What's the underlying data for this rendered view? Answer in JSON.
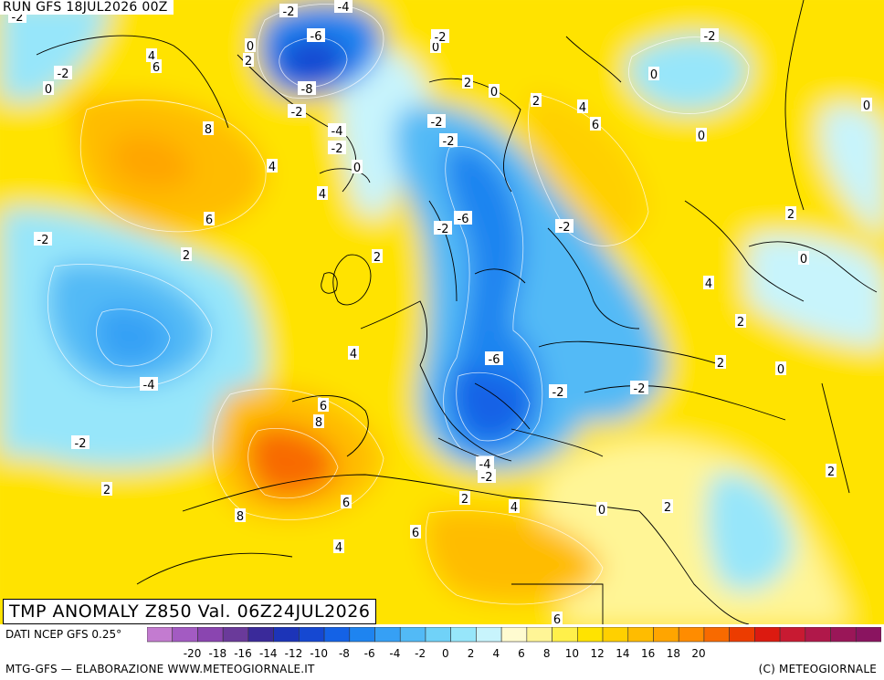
{
  "header": {
    "run_label": "RUN GFS 18JUL2026 00Z"
  },
  "title": {
    "text": "TMP ANOMALY Z850 Val. 06Z24JUL2026"
  },
  "footer": {
    "source": "DATI NCEP GFS 0.25°",
    "credit_left": "MTG-GFS — ELABORAZIONE WWW.METEOGIORNALE.IT",
    "credit_right": "(C) METEOGIORNALE"
  },
  "colorbar": {
    "colors": [
      "#c37bd0",
      "#a35bc2",
      "#8a45b0",
      "#6a3a9a",
      "#3a2a9a",
      "#1c34b8",
      "#1548d2",
      "#1462e6",
      "#1e84f0",
      "#36a0f5",
      "#52baf6",
      "#70d2f8",
      "#97e6fa",
      "#c8f4fc",
      "#fffbd0",
      "#fff596",
      "#fff04a",
      "#ffe300",
      "#ffd000",
      "#ffbc00",
      "#ffa500",
      "#ff8c00",
      "#f86a00",
      "#ec3c00",
      "#dc1a10",
      "#c81a32",
      "#b0184a",
      "#9a1658",
      "#8a1460"
    ],
    "tick_labels": [
      "-20",
      "-18",
      "-16",
      "-14",
      "-12",
      "-10",
      "-8",
      "-6",
      "-4",
      "-2",
      "0",
      "2",
      "4",
      "6",
      "8",
      "10",
      "12",
      "14",
      "16",
      "18",
      "20"
    ]
  },
  "map": {
    "contour_labels": [
      {
        "text": "-2"
      },
      {
        "text": "-4"
      },
      {
        "text": "-6"
      },
      {
        "text": "0"
      },
      {
        "text": "2"
      },
      {
        "text": "-8"
      },
      {
        "text": "-2"
      },
      {
        "text": "-4"
      },
      {
        "text": "-2"
      },
      {
        "text": "0"
      },
      {
        "text": "4"
      },
      {
        "text": "6"
      },
      {
        "text": "0"
      },
      {
        "text": "-2"
      },
      {
        "text": "8"
      },
      {
        "text": "4"
      },
      {
        "text": "4"
      },
      {
        "text": "6"
      },
      {
        "text": "-2"
      },
      {
        "text": "2"
      },
      {
        "text": "-4"
      },
      {
        "text": "-2"
      },
      {
        "text": "6"
      },
      {
        "text": "8"
      },
      {
        "text": "4"
      },
      {
        "text": "-2"
      },
      {
        "text": "0"
      },
      {
        "text": "2"
      },
      {
        "text": "8"
      },
      {
        "text": "6"
      },
      {
        "text": "6"
      },
      {
        "text": "4"
      },
      {
        "text": "-2"
      },
      {
        "text": "0"
      },
      {
        "text": "2"
      },
      {
        "text": "-2"
      },
      {
        "text": "2"
      },
      {
        "text": "0"
      },
      {
        "text": "2"
      },
      {
        "text": "4"
      },
      {
        "text": "-2"
      },
      {
        "text": "-6"
      },
      {
        "text": "-2"
      },
      {
        "text": "-2"
      },
      {
        "text": "-6"
      },
      {
        "text": "-2"
      },
      {
        "text": "-4"
      },
      {
        "text": "-2"
      },
      {
        "text": "2"
      },
      {
        "text": "4"
      },
      {
        "text": "0"
      },
      {
        "text": "2"
      },
      {
        "text": "6"
      },
      {
        "text": "-2"
      },
      {
        "text": "0"
      },
      {
        "text": "2"
      },
      {
        "text": "-2"
      },
      {
        "text": "0"
      },
      {
        "text": "4"
      },
      {
        "text": "2"
      },
      {
        "text": "2"
      },
      {
        "text": "0"
      },
      {
        "text": "0"
      },
      {
        "text": "2"
      },
      {
        "text": "6"
      }
    ]
  }
}
